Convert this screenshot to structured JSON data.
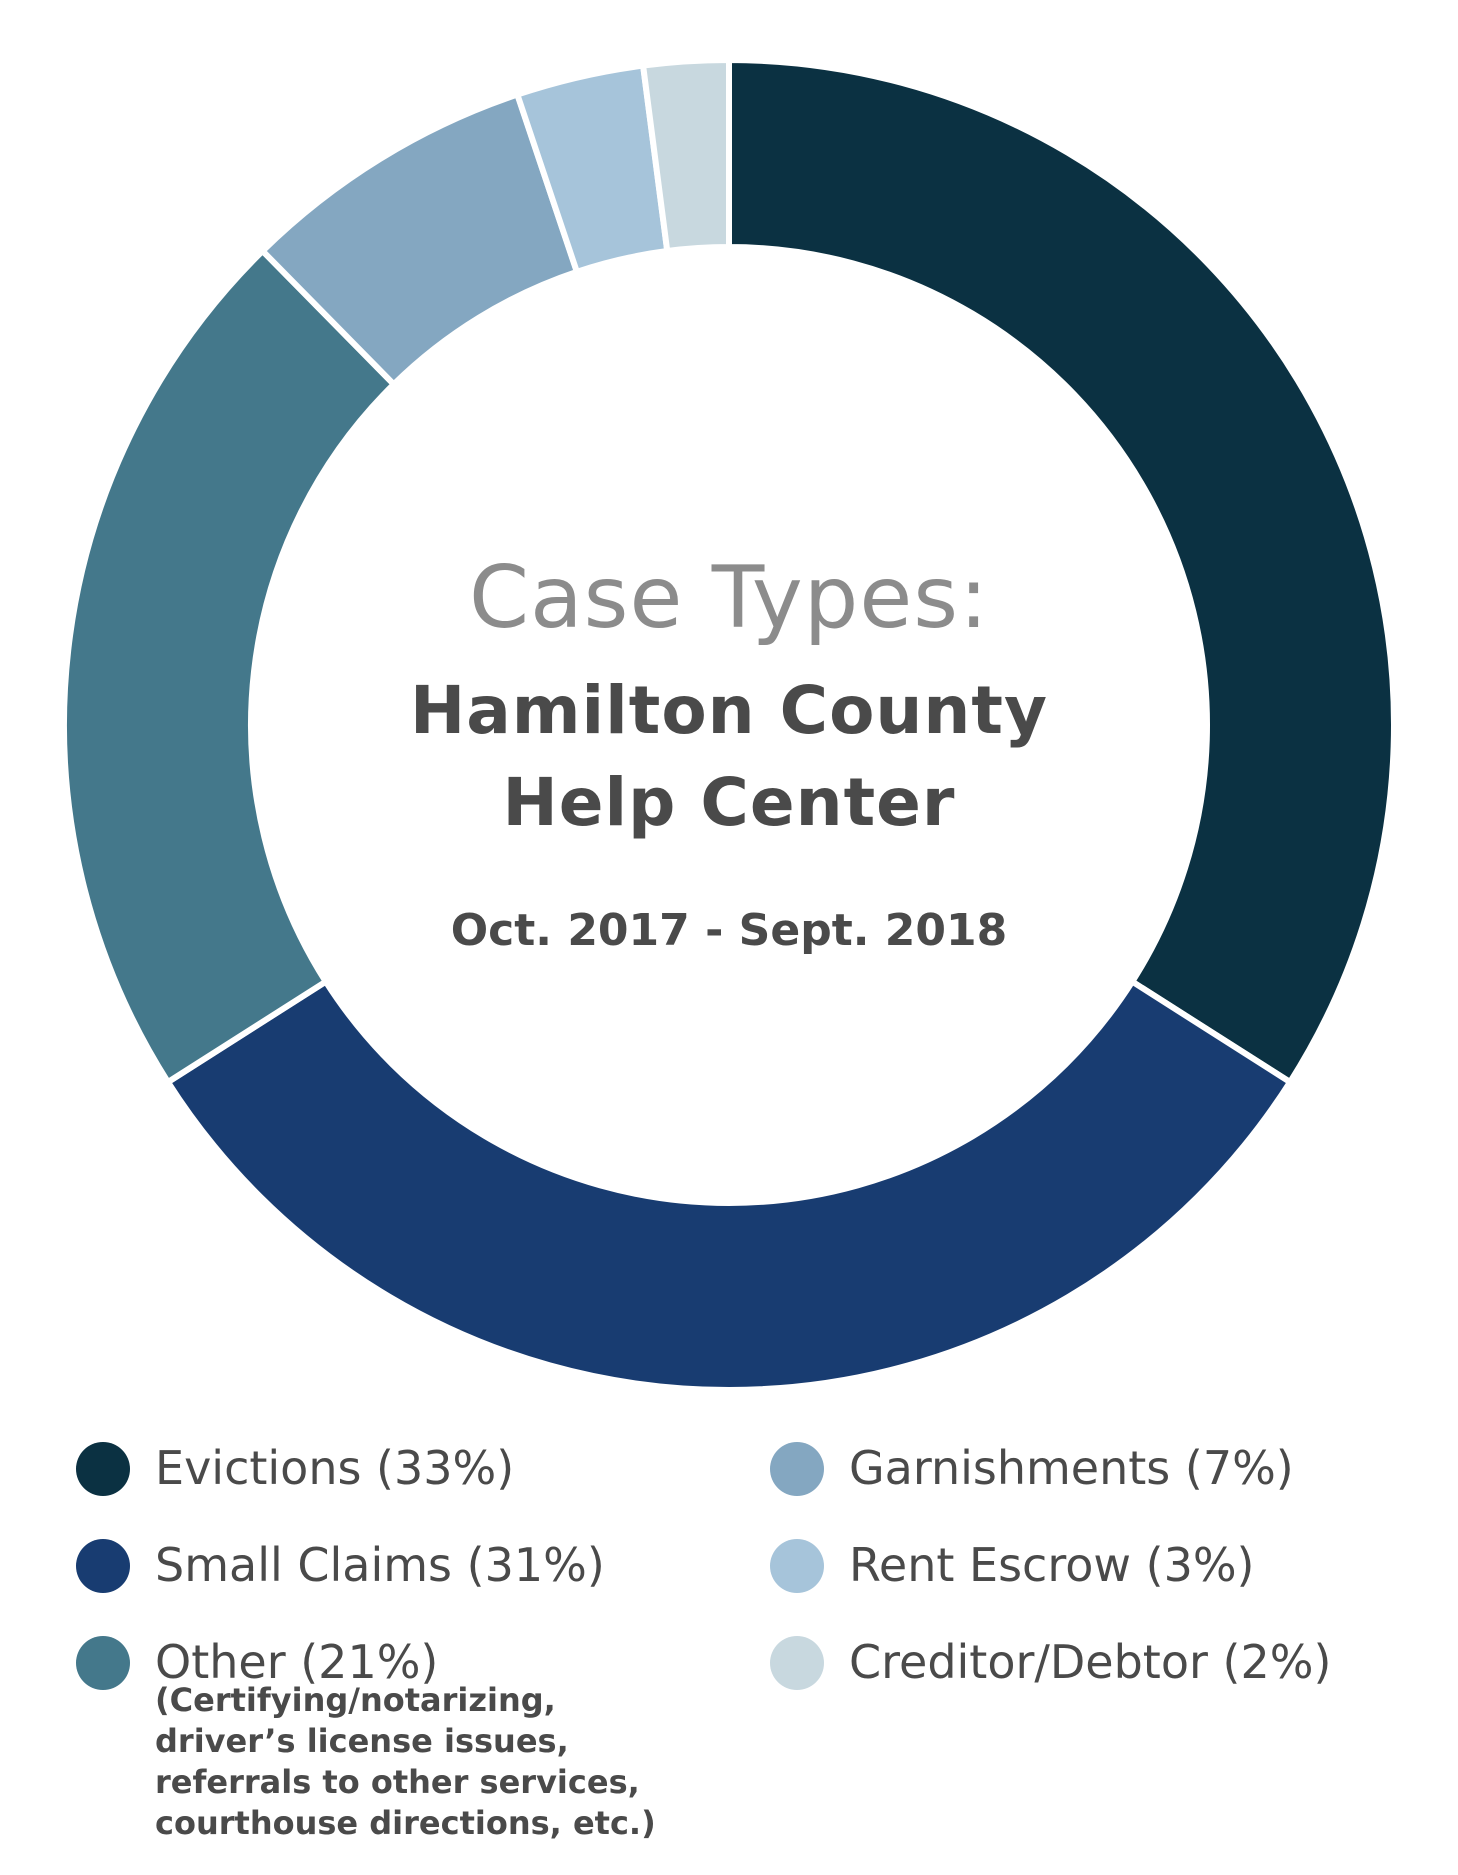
{
  "chart_data": {
    "type": "pie",
    "variant": "donut",
    "title": "Case Types:",
    "subtitle_lines": [
      "Hamilton County",
      "Help Center"
    ],
    "date_range": "Oct. 2017 - Sept. 2018",
    "slices": [
      {
        "label": "Evictions",
        "value": 33,
        "legend_text": "Evictions (33%)",
        "color": "#0b3142"
      },
      {
        "label": "Small Claims",
        "value": 31,
        "legend_text": "Small Claims (31%)",
        "color": "#183c71"
      },
      {
        "label": "Other",
        "value": 21,
        "legend_text": "Other (21%)",
        "color": "#44788b"
      },
      {
        "label": "Garnishments",
        "value": 7,
        "legend_text": "Garnishments (7%)",
        "color": "#84a7c1"
      },
      {
        "label": "Rent Escrow",
        "value": 3,
        "legend_text": "Rent Escrow (3%)",
        "color": "#a6c4da"
      },
      {
        "label": "Creditor/Debtor",
        "value": 2,
        "legend_text": "Creditor/Debtor (2%)",
        "color": "#c8d8df"
      }
    ],
    "other_note_lines": [
      "(Certifying/notarizing,",
      "driver’s license issues,",
      "referrals to other services,",
      "courthouse directions, etc.)"
    ],
    "legend_placement": "bottom"
  }
}
